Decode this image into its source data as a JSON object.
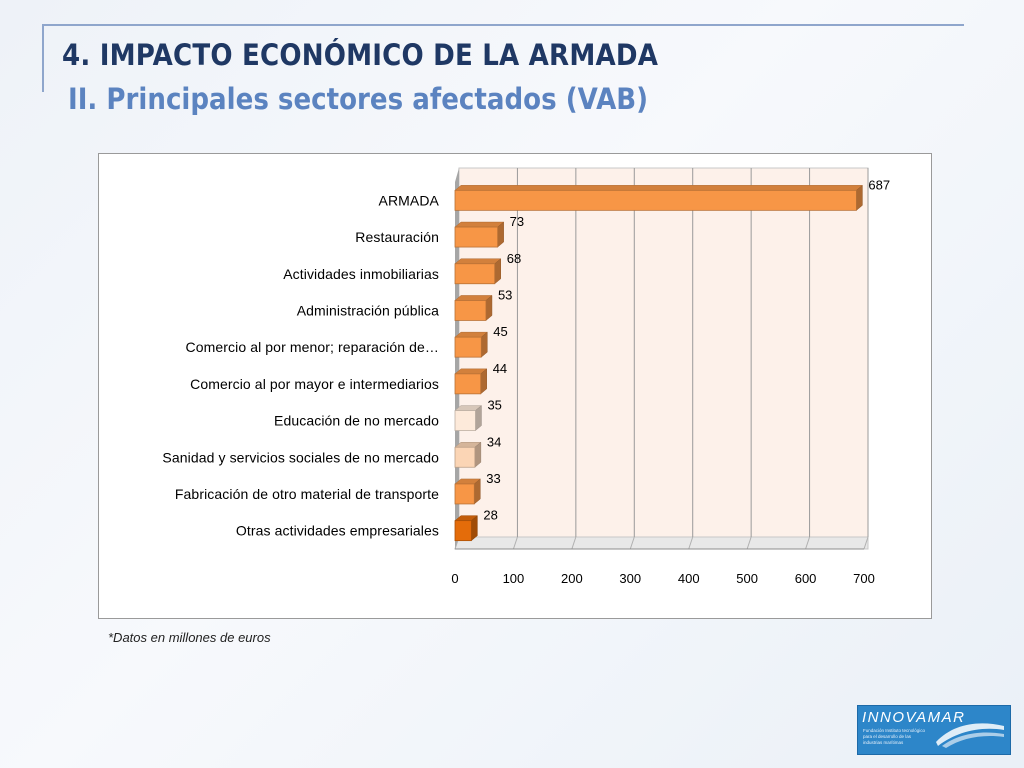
{
  "slide": {
    "title": "4. IMPACTO ECONÓMICO DE LA ARMADA",
    "subtitle": "II. Principales sectores afectados (VAB)",
    "footnote": "*Datos en millones de euros"
  },
  "logo": {
    "brand": "INNOVAMAR",
    "tagline": [
      "Fundación Instituto tecnológico",
      "para el desarrollo de las",
      "industrias marítimas"
    ]
  },
  "colors": {
    "title": "#1f3864",
    "subtitle": "#5b83c0",
    "bar_orange": "#f79646",
    "bar_light": "#fbd5b5",
    "bar_palest": "#fdeada",
    "bar_dark": "#e46c0a",
    "plot_wall": "#fdf1ea"
  },
  "chart_data": {
    "type": "bar",
    "orientation": "horizontal",
    "categories": [
      "ARMADA",
      "Restauración",
      "Actividades inmobiliarias",
      "Administración pública",
      "Comercio al por menor; reparación de…",
      "Comercio al por mayor e intermediarios",
      "Educación de no mercado",
      "Sanidad y servicios sociales de no mercado",
      "Fabricación de otro material de transporte",
      "Otras actividades empresariales"
    ],
    "values": [
      687,
      73,
      68,
      53,
      45,
      44,
      35,
      34,
      33,
      28
    ],
    "bar_colors": [
      "#f79646",
      "#f79646",
      "#f79646",
      "#f79646",
      "#f79646",
      "#f79646",
      "#fdeada",
      "#fbd5b5",
      "#f79646",
      "#e46c0a"
    ],
    "data_labels": [
      "687",
      "73",
      "68",
      "53",
      "45",
      "44",
      "35",
      "34",
      "33",
      "28"
    ],
    "xlim": [
      0,
      700
    ],
    "xticks": [
      "0",
      "100",
      "200",
      "300",
      "400",
      "500",
      "600",
      "700"
    ],
    "grid": true,
    "style": "3d",
    "legend": "none",
    "title": "",
    "xlabel": "",
    "ylabel": ""
  }
}
